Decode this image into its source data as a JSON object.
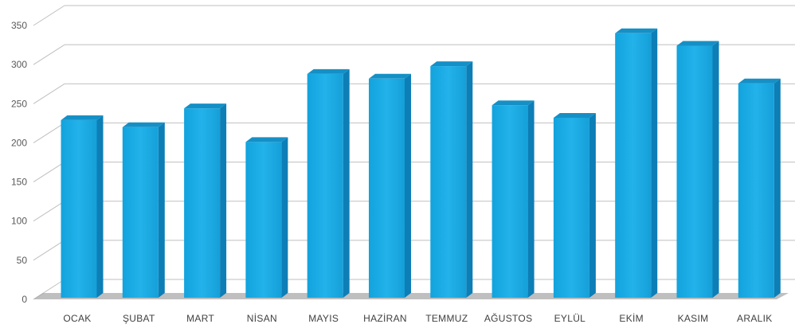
{
  "chart_data": {
    "type": "bar",
    "style": "3d-column",
    "categories": [
      "OCAK",
      "ŞUBAT",
      "MART",
      "NİSAN",
      "MAYIS",
      "HAZİRAN",
      "TEMMUZ",
      "AĞUSTOS",
      "EYLÜL",
      "EKİM",
      "KASIM",
      "ARALIK"
    ],
    "series": [
      {
        "values": [
          227,
          218,
          242,
          199,
          286,
          280,
          296,
          246,
          230,
          338,
          322,
          274
        ]
      }
    ],
    "title": "",
    "xlabel": "",
    "ylabel": "",
    "ylim": [
      0,
      350
    ],
    "yticks": [
      0,
      50,
      100,
      150,
      200,
      250,
      300,
      350
    ],
    "grid": true,
    "legend": "none",
    "colors": {
      "bar_front": "#1fa8df",
      "bar_side": "#0d7eb6",
      "bar_top": "#1590c6",
      "grid": "#bfbfbf",
      "floor_shadow": "#8a8a8a"
    }
  }
}
